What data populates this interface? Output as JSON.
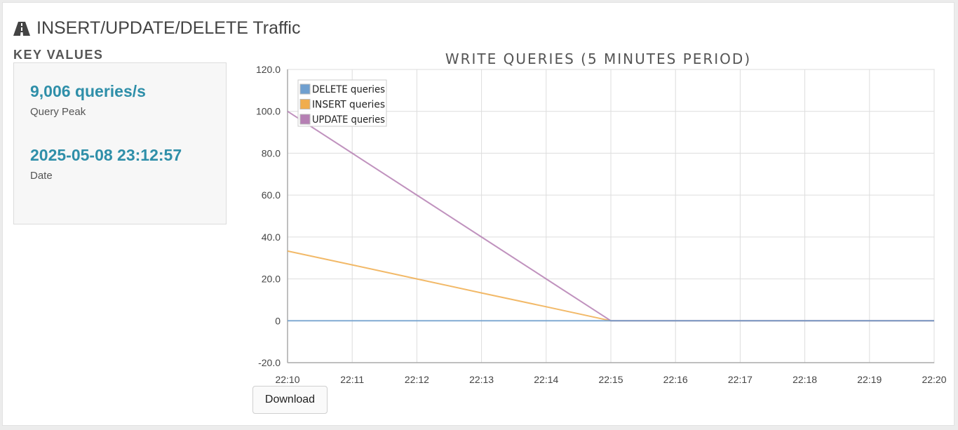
{
  "page": {
    "title": "INSERT/UPDATE/DELETE Traffic",
    "title_icon": "road-icon"
  },
  "key_values": {
    "section_label": "KEY VALUES",
    "query_peak_value": "9,006 queries/s",
    "query_peak_label": "Query Peak",
    "date_value": "2025-05-08 23:12:57",
    "date_label": "Date"
  },
  "chart_data": {
    "type": "line",
    "title": "WRITE QUERIES (5 MINUTES PERIOD)",
    "xlabel": "",
    "ylabel": "",
    "x": [
      "22:10",
      "22:11",
      "22:12",
      "22:13",
      "22:14",
      "22:15",
      "22:16",
      "22:17",
      "22:18",
      "22:19",
      "22:20"
    ],
    "ylim": [
      -20,
      120
    ],
    "yticks": [
      "-20.0",
      "0",
      "20.0",
      "40.0",
      "60.0",
      "80.0",
      "100.0",
      "120.0"
    ],
    "grid": true,
    "legend_position": "top-left",
    "series": [
      {
        "name": "DELETE queries",
        "color": "#6f9fcf",
        "values": [
          0,
          0,
          0,
          0,
          0,
          0,
          0,
          0,
          0,
          0,
          0
        ]
      },
      {
        "name": "INSERT queries",
        "color": "#f0ad4e",
        "values": [
          33.3,
          26.7,
          20,
          13.3,
          6.7,
          0,
          0,
          0,
          0,
          0,
          0
        ]
      },
      {
        "name": "UPDATE queries",
        "color": "#b57fb3",
        "values": [
          100,
          80,
          60,
          40,
          20,
          0,
          0,
          0,
          0,
          0,
          0
        ]
      }
    ]
  },
  "actions": {
    "download_label": "Download"
  }
}
